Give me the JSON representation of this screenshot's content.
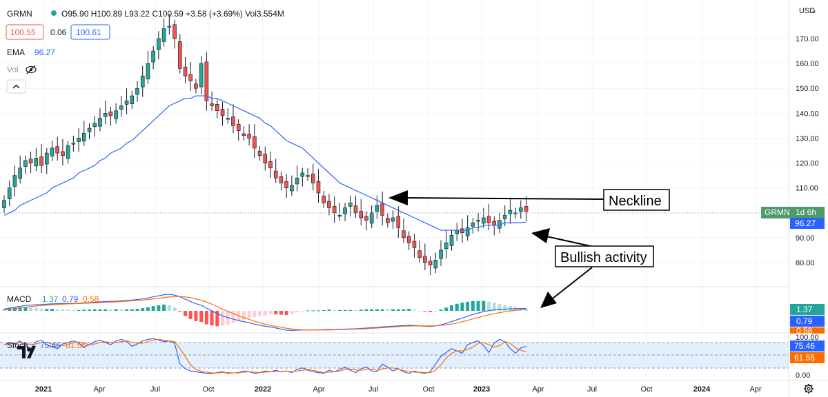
{
  "header": {
    "symbol": "GRMN",
    "ohlc": "O95.90  H100.89  L93.22  C100.59  +3.58 (+3.69%)  Vol3.554M",
    "bid": "100.55",
    "spread": "0.06",
    "ask": "100.61",
    "ema_label": "EMA",
    "ema_value": "96.27",
    "vol_label": "Vol",
    "collapse_icon": "chevron-up-icon",
    "hide_icon": "eye-off-icon"
  },
  "price_axis": {
    "currency": "USD",
    "ticks": [
      "170.00",
      "160.00",
      "150.00",
      "140.00",
      "130.00",
      "120.00",
      "110.00",
      "100.00",
      "90.00",
      "80.00"
    ],
    "last_tag_label": "GRMN",
    "last_tag_time": "1d 6h",
    "ema_tag": "96.27"
  },
  "time_axis": {
    "ticks": [
      "2021",
      "Apr",
      "Jul",
      "Oct",
      "2022",
      "Apr",
      "Jul",
      "Oct",
      "2023",
      "Apr",
      "Jul",
      "Oct",
      "2024",
      "Apr"
    ]
  },
  "macd": {
    "label": "MACD",
    "v1": "1.37",
    "v2": "0.79",
    "v3": "0.58",
    "tag1": "1.37",
    "tag2": "0.79",
    "tag3": "0.58"
  },
  "stoch": {
    "label": "Stoch",
    "k": "75.46",
    "d": "61.55",
    "axis_ticks": [
      "100.00",
      "0.00"
    ],
    "tag_k": "75.46",
    "tag_d": "61.55"
  },
  "annotations": {
    "neckline": "Neckline",
    "bullish": "Bullish activity"
  },
  "settings_icon": "gear-icon",
  "logo": "tradingview-logo",
  "colors": {
    "up": "#26a69a",
    "down": "#ef5350",
    "ema": "#2962ff",
    "macd_line": "#2962ff",
    "signal_line": "#ff6d00",
    "stoch_band": "#e3effd"
  },
  "chart_data": {
    "type": "candlestick",
    "interval": "weekly",
    "x_range": [
      "2020-12",
      "2024-05"
    ],
    "ylim": [
      75,
      178
    ],
    "closes": [
      105,
      110,
      115,
      118,
      121,
      120,
      122,
      119,
      124,
      126,
      124,
      123,
      127,
      128,
      130,
      132,
      134,
      136,
      138,
      140,
      139,
      141,
      143,
      145,
      147,
      150,
      155,
      160,
      165,
      170,
      174,
      175,
      170,
      158,
      155,
      153,
      150,
      160,
      145,
      143,
      141,
      139,
      138,
      135,
      133,
      131,
      130,
      126,
      123,
      120,
      118,
      114,
      112,
      110,
      111,
      114,
      116,
      115,
      112,
      108,
      104,
      102,
      100,
      99,
      102,
      104,
      100,
      98,
      97,
      100,
      103,
      99,
      96,
      98,
      94,
      90,
      88,
      86,
      82,
      80,
      79,
      81,
      85,
      88,
      91,
      93,
      92,
      94,
      96,
      97,
      98,
      96,
      95,
      97,
      99,
      101,
      100,
      102,
      100.59
    ],
    "ema": [
      99,
      100,
      101,
      103,
      104,
      105,
      106,
      107,
      108,
      110,
      111,
      112,
      113,
      114,
      116,
      117,
      118,
      119,
      121,
      122,
      124,
      125,
      126,
      128,
      129,
      131,
      133,
      135,
      137,
      139,
      141,
      143,
      144,
      145,
      146,
      146,
      147,
      147,
      147,
      146,
      146,
      145,
      144,
      143,
      142,
      141,
      140,
      139,
      138,
      136,
      135,
      133,
      131,
      129,
      128,
      127,
      126,
      124,
      122,
      120,
      118,
      116,
      114,
      112,
      111,
      110,
      109,
      108,
      107,
      106,
      105,
      104,
      103,
      102,
      101,
      100,
      99,
      98,
      97,
      96,
      95,
      94,
      93,
      93,
      93,
      93,
      93,
      93,
      94,
      94,
      95,
      95,
      95,
      95,
      96,
      96,
      96,
      96,
      96.27
    ],
    "macd_line": [
      1,
      1.5,
      2,
      2.5,
      3,
      3.2,
      3.4,
      3.5,
      3.7,
      3.9,
      4,
      4.1,
      4.2,
      4.2,
      4.3,
      4.5,
      4.6,
      4.8,
      5,
      5.2,
      5.3,
      5.4,
      5.6,
      5.8,
      6,
      6.3,
      6.7,
      7.2,
      7.8,
      8.4,
      9,
      9.2,
      8.8,
      7.8,
      6.5,
      5.2,
      4,
      3.1,
      1.5,
      0,
      -1.5,
      -2.8,
      -3.8,
      -4.6,
      -5.4,
      -6,
      -6.6,
      -7.4,
      -8,
      -8.6,
      -9,
      -9.6,
      -10.2,
      -10.8,
      -10.9,
      -10.8,
      -10.7,
      -10.6,
      -10.6,
      -10.6,
      -10.5,
      -10.4,
      -10.4,
      -10.3,
      -10.2,
      -10.1,
      -10,
      -9.8,
      -9.6,
      -9.4,
      -9.2,
      -9,
      -8.8,
      -8.6,
      -8.4,
      -8.2,
      -8,
      -8.1,
      -8.4,
      -8.6,
      -8.7,
      -8.4,
      -7.8,
      -7,
      -6,
      -5,
      -4,
      -3,
      -2,
      -1.2,
      -0.4,
      0.1,
      0.5,
      0.7,
      0.9,
      1.1,
      1.2,
      1.3,
      1.37
    ],
    "signal_line": [
      0.5,
      0.8,
      1.2,
      1.6,
      2,
      2.4,
      2.7,
      3,
      3.2,
      3.4,
      3.6,
      3.7,
      3.9,
      4,
      4.1,
      4.2,
      4.3,
      4.4,
      4.6,
      4.8,
      4.9,
      5,
      5.2,
      5.4,
      5.6,
      5.8,
      6,
      6.3,
      6.6,
      7,
      7.4,
      7.8,
      8,
      8,
      7.8,
      7.3,
      6.6,
      5.9,
      4.9,
      3.7,
      2.4,
      1,
      -0.3,
      -1.5,
      -2.7,
      -3.8,
      -4.8,
      -5.8,
      -6.6,
      -7.4,
      -8.1,
      -8.7,
      -9.2,
      -9.7,
      -10.1,
      -10.4,
      -10.6,
      -10.7,
      -10.7,
      -10.7,
      -10.7,
      -10.7,
      -10.6,
      -10.5,
      -10.4,
      -10.3,
      -10.2,
      -10.1,
      -10,
      -9.8,
      -9.6,
      -9.4,
      -9.2,
      -9,
      -8.8,
      -8.6,
      -8.5,
      -8.4,
      -8.4,
      -8.4,
      -8.4,
      -8.3,
      -8.1,
      -7.8,
      -7.4,
      -6.8,
      -6.1,
      -5.3,
      -4.5,
      -3.7,
      -2.9,
      -2.2,
      -1.6,
      -1,
      -0.5,
      -0.1,
      0.3,
      0.6,
      0.79
    ],
    "stoch_k": [
      80,
      85,
      82,
      90,
      78,
      70,
      88,
      92,
      80,
      75,
      70,
      82,
      86,
      90,
      85,
      74,
      80,
      88,
      92,
      86,
      80,
      90,
      94,
      88,
      76,
      82,
      90,
      94,
      96,
      92,
      88,
      90,
      84,
      30,
      18,
      12,
      10,
      8,
      6,
      5,
      8,
      10,
      6,
      7,
      8,
      12,
      10,
      6,
      8,
      12,
      10,
      14,
      10,
      12,
      8,
      16,
      20,
      14,
      10,
      8,
      6,
      14,
      10,
      16,
      22,
      14,
      8,
      18,
      22,
      12,
      10,
      30,
      22,
      12,
      18,
      10,
      6,
      12,
      8,
      6,
      10,
      30,
      50,
      60,
      70,
      64,
      58,
      80,
      86,
      90,
      78,
      60,
      84,
      94,
      88,
      70,
      58,
      72,
      75.46
    ],
    "stoch_d": [
      80,
      82,
      84,
      86,
      84,
      80,
      82,
      86,
      86,
      82,
      78,
      78,
      80,
      86,
      87,
      84,
      80,
      82,
      86,
      88,
      86,
      86,
      88,
      90,
      86,
      84,
      84,
      88,
      92,
      94,
      92,
      90,
      88,
      70,
      50,
      28,
      16,
      12,
      9,
      7,
      7,
      8,
      8,
      7,
      7,
      9,
      10,
      9,
      8,
      9,
      10,
      11,
      11,
      12,
      10,
      12,
      14,
      16,
      14,
      11,
      8,
      9,
      10,
      12,
      16,
      17,
      15,
      14,
      16,
      17,
      14,
      17,
      20,
      20,
      17,
      13,
      11,
      9,
      9,
      8,
      8,
      14,
      28,
      46,
      58,
      64,
      64,
      68,
      74,
      84,
      86,
      80,
      74,
      78,
      88,
      84,
      72,
      66,
      61.55
    ]
  }
}
